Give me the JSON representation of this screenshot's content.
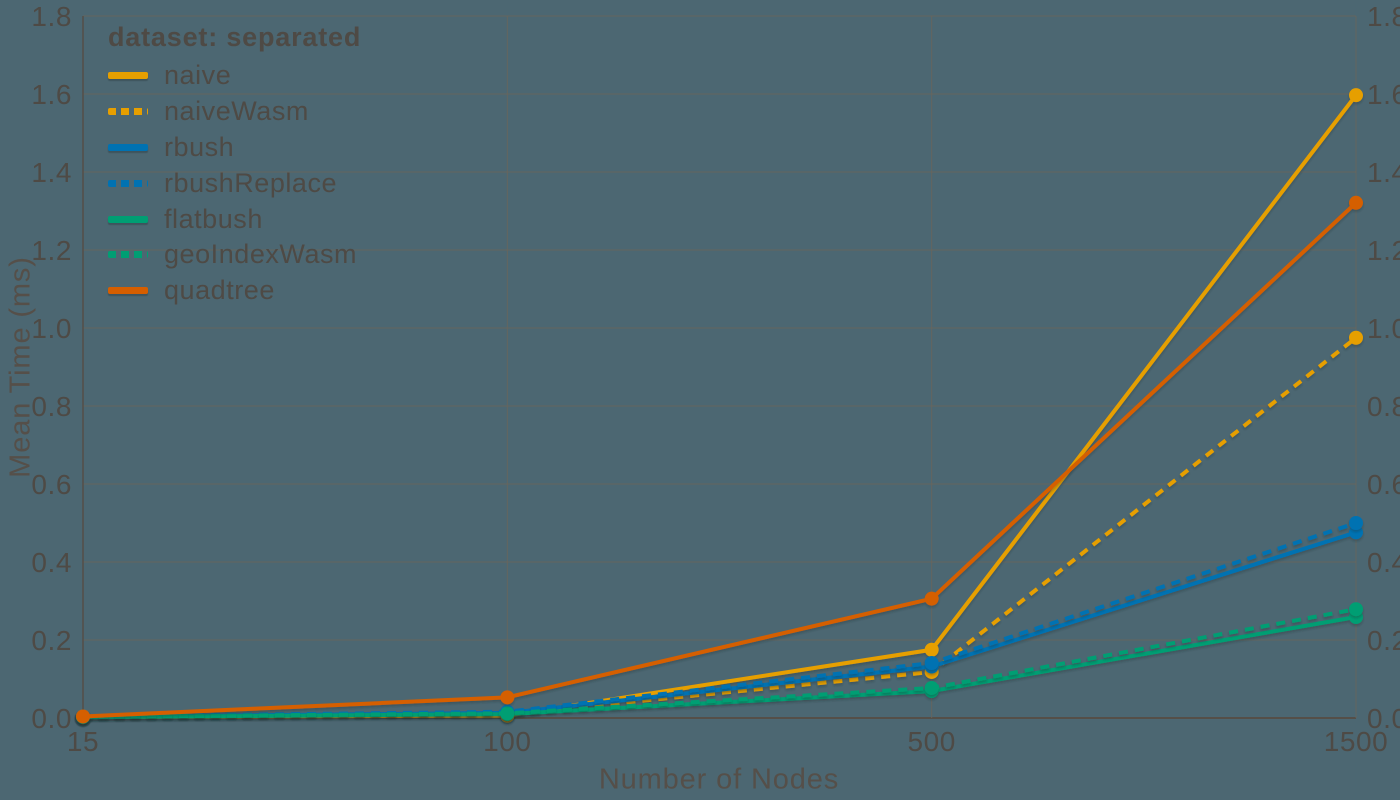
{
  "colors": {
    "background": "#4c6772",
    "grid_line": "#6a655c",
    "axis_line": "#554f48",
    "text": "#4e4a45",
    "gold": "#E69F00",
    "blue": "#0072B2",
    "green": "#009E73",
    "vermillion": "#D55E00"
  },
  "legend": {
    "title": "dataset: separated",
    "items": [
      {
        "label": "naive",
        "color": "#E69F00",
        "dash": false
      },
      {
        "label": "naiveWasm",
        "color": "#E69F00",
        "dash": true
      },
      {
        "label": "rbush",
        "color": "#0072B2",
        "dash": false
      },
      {
        "label": "rbushReplace",
        "color": "#0072B2",
        "dash": true
      },
      {
        "label": "flatbush",
        "color": "#009E73",
        "dash": false
      },
      {
        "label": "geoIndexWasm",
        "color": "#009E73",
        "dash": true
      },
      {
        "label": "quadtree",
        "color": "#D55E00",
        "dash": false
      }
    ]
  },
  "chart_data": {
    "type": "line",
    "title": "",
    "xlabel": "Number of Nodes",
    "ylabel": "Mean Time (ms)",
    "categories": [
      15,
      100,
      500,
      1500
    ],
    "x_tick_labels": [
      "15",
      "100",
      "500",
      "1500"
    ],
    "y_ticks": [
      0.0,
      0.2,
      0.4,
      0.6,
      0.8,
      1.0,
      1.2,
      1.4,
      1.6,
      1.8
    ],
    "y_tick_labels": [
      "0.0",
      "0.2",
      "0.4",
      "0.6",
      "0.8",
      "1.0",
      "1.2",
      "1.4",
      "1.6",
      "1.8"
    ],
    "ylim": [
      0,
      1.8
    ],
    "grid": true,
    "legend_position": "top-left",
    "x_spacing": "equal",
    "markers": true,
    "series": [
      {
        "name": "naive",
        "color": "#E69F00",
        "dash": false,
        "values": [
          0.003,
          0.006,
          0.175,
          1.597
        ]
      },
      {
        "name": "naiveWasm",
        "color": "#E69F00",
        "dash": true,
        "values": [
          0.004,
          0.01,
          0.118,
          0.975
        ]
      },
      {
        "name": "rbush",
        "color": "#0072B2",
        "dash": false,
        "values": [
          0.003,
          0.013,
          0.132,
          0.476
        ]
      },
      {
        "name": "rbushReplace",
        "color": "#0072B2",
        "dash": true,
        "values": [
          0.004,
          0.016,
          0.141,
          0.5
        ]
      },
      {
        "name": "flatbush",
        "color": "#009E73",
        "dash": false,
        "values": [
          0.002,
          0.01,
          0.069,
          0.259
        ]
      },
      {
        "name": "geoIndexWasm",
        "color": "#009E73",
        "dash": true,
        "values": [
          0.003,
          0.012,
          0.077,
          0.279
        ]
      },
      {
        "name": "quadtree",
        "color": "#D55E00",
        "dash": false,
        "values": [
          0.004,
          0.053,
          0.306,
          1.321
        ]
      }
    ]
  }
}
